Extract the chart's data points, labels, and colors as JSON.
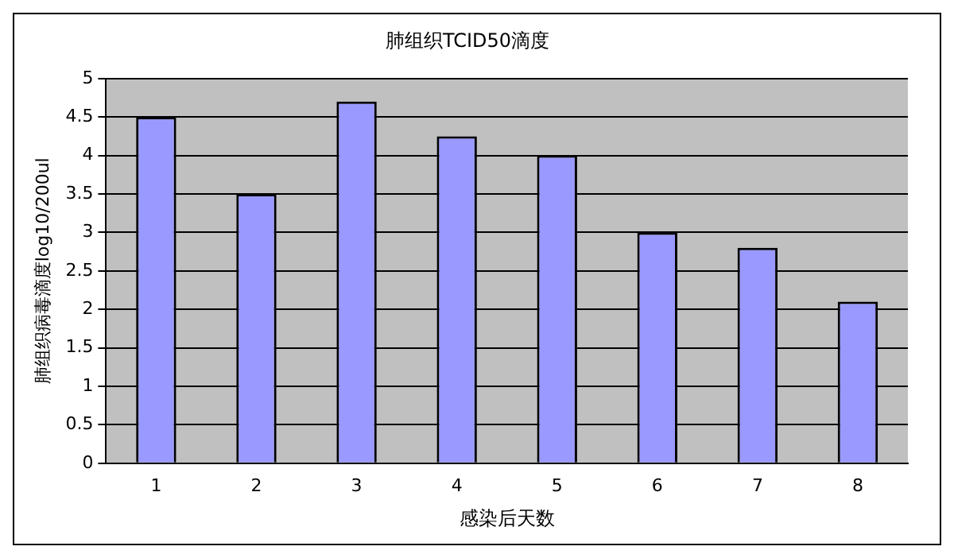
{
  "chart_data": {
    "type": "bar",
    "title": "肺组织TCID50滴度",
    "xlabel": "感染后天数",
    "ylabel": "肺组织病毒滴度log10/200ul",
    "categories": [
      "1",
      "2",
      "3",
      "4",
      "5",
      "6",
      "7",
      "8"
    ],
    "values": [
      4.5,
      3.5,
      4.7,
      4.25,
      4.0,
      3.0,
      2.8,
      2.1
    ],
    "color": "#9999ff",
    "ylim": [
      0,
      5
    ],
    "yticks": [
      0,
      0.5,
      1,
      1.5,
      2,
      2.5,
      3,
      3.5,
      4,
      4.5,
      5
    ],
    "grid": "y",
    "legend": false
  }
}
